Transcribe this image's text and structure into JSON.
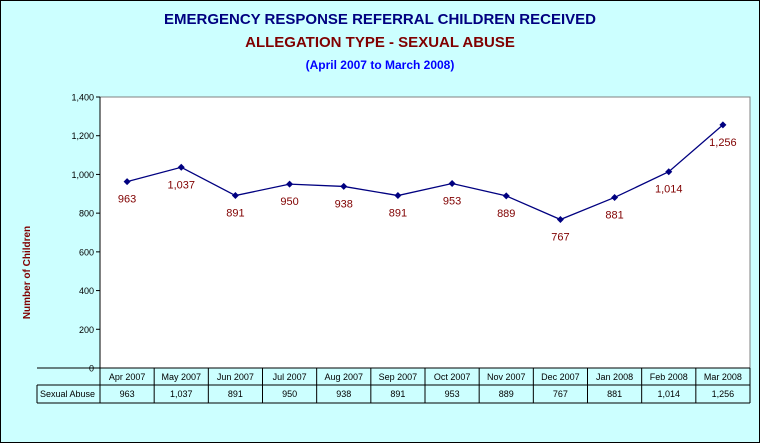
{
  "chart_data": {
    "type": "line",
    "title": "EMERGENCY RESPONSE REFERRAL CHILDREN RECEIVED",
    "subtitle": "ALLEGATION TYPE - SEXUAL ABUSE",
    "subtitle2": "(April 2007 to March 2008)",
    "xlabel": "",
    "ylabel": "Number of Children",
    "ylim": [
      0,
      1400
    ],
    "yticks": [
      "0",
      "200",
      "400",
      "600",
      "800",
      "1,000",
      "1,200",
      "1,400"
    ],
    "yticks_values": [
      0,
      200,
      400,
      600,
      800,
      1000,
      1200,
      1400
    ],
    "categories": [
      "Apr 2007",
      "May 2007",
      "Jun 2007",
      "Jul 2007",
      "Aug 2007",
      "Sep 2007",
      "Oct 2007",
      "Nov 2007",
      "Dec 2007",
      "Jan 2008",
      "Feb 2008",
      "Mar 2008"
    ],
    "series": [
      {
        "name": "Sexual Abuse",
        "values": [
          963,
          1037,
          891,
          950,
          938,
          891,
          953,
          889,
          767,
          881,
          1014,
          1256
        ],
        "labels": [
          "963",
          "1,037",
          "891",
          "950",
          "938",
          "891",
          "953",
          "889",
          "767",
          "881",
          "1,014",
          "1,256"
        ],
        "color": "#000080",
        "label_color": "#800000"
      }
    ],
    "grid": false,
    "data_table": true
  }
}
